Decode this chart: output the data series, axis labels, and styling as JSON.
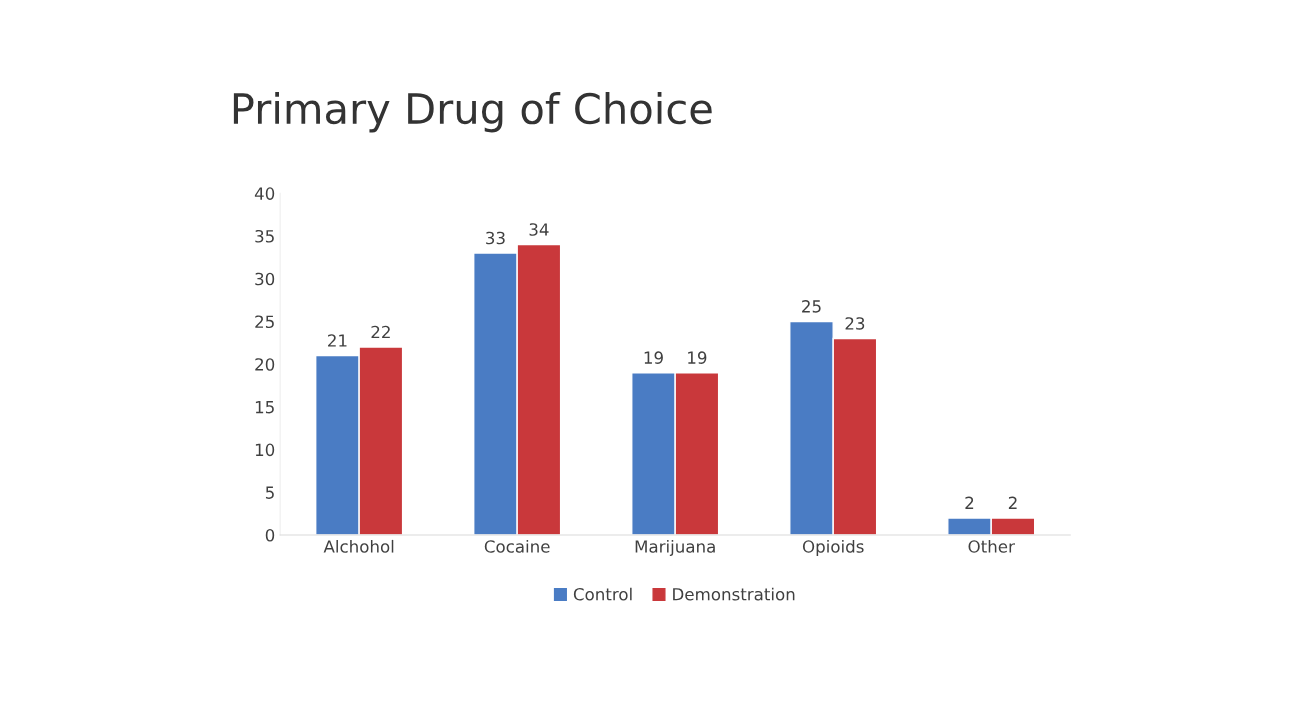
{
  "chart_data": {
    "type": "bar",
    "title": "Primary Drug of Choice",
    "categories": [
      "Alchohol",
      "Cocaine",
      "Marijuana",
      "Opioids",
      "Other"
    ],
    "series": [
      {
        "name": "Control",
        "color": "#4a7cc4",
        "values": [
          21,
          33,
          19,
          25,
          2
        ]
      },
      {
        "name": "Demonstration",
        "color": "#c9383b",
        "values": [
          22,
          34,
          19,
          23,
          2
        ]
      }
    ],
    "ylim": [
      0,
      40
    ],
    "yticks": [
      0,
      5,
      10,
      15,
      20,
      25,
      30,
      35,
      40
    ],
    "grid": false,
    "legend": "bottom",
    "data_labels": true
  }
}
